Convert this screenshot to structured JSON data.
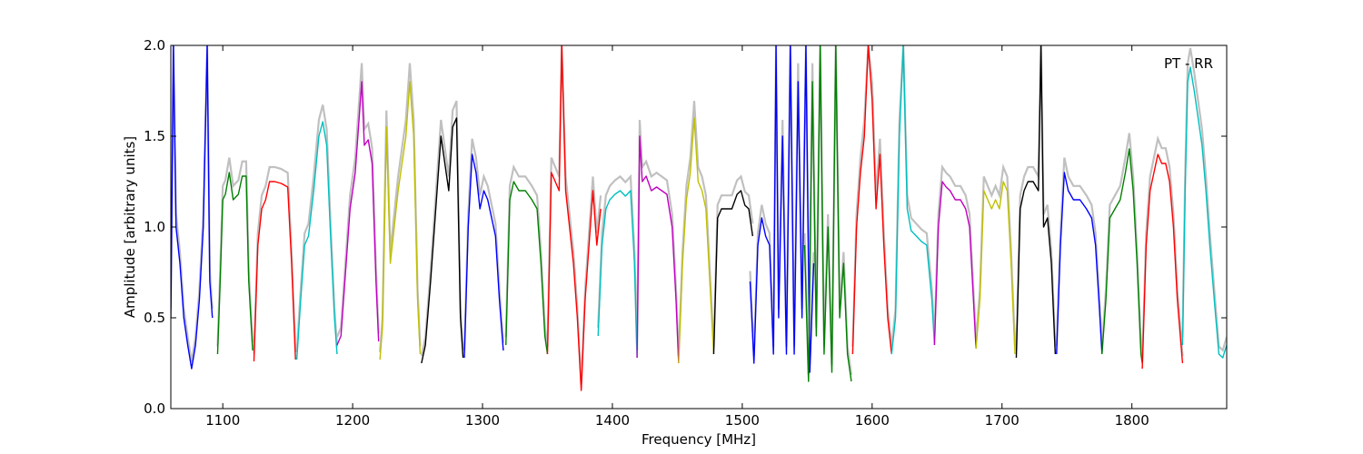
{
  "chart_data": {
    "type": "line",
    "annotation": "PT - RR",
    "xlabel": "Frequency [MHz]",
    "ylabel": "Amplitude [arbitrary units]",
    "xlim": [
      1060,
      1873
    ],
    "ylim": [
      0.0,
      2.0
    ],
    "xticks": [
      1100,
      1200,
      1300,
      1400,
      1500,
      1600,
      1700,
      1800
    ],
    "yticks": [
      0.0,
      0.5,
      1.0,
      1.5,
      2.0
    ],
    "xtick_labels": [
      "1100",
      "1200",
      "1300",
      "1400",
      "1500",
      "1600",
      "1700",
      "1800"
    ],
    "ytick_labels": [
      "0.0",
      "0.5",
      "1.0",
      "1.5",
      "2.0"
    ],
    "grid": false,
    "background_color": "#c0c0c0",
    "subband_colors": [
      "#0000ff",
      "#008000",
      "#ff0000",
      "#00bfbf",
      "#bf00bf",
      "#bfbf00",
      "#000000"
    ],
    "series": [
      {
        "color": "#0000ff",
        "x": [
          1060,
          1062,
          1064,
          1067,
          1070,
          1073,
          1076,
          1079,
          1082,
          1085,
          1088,
          1090,
          1092
        ],
        "y": [
          0.5,
          2.0,
          1.0,
          0.8,
          0.5,
          0.35,
          0.22,
          0.35,
          0.6,
          1.0,
          2.0,
          0.7,
          0.5
        ]
      },
      {
        "color": "#008000",
        "x": [
          1096,
          1098,
          1100,
          1102,
          1105,
          1108,
          1112,
          1115,
          1118,
          1120,
          1123
        ],
        "y": [
          0.3,
          0.7,
          1.15,
          1.18,
          1.3,
          1.15,
          1.18,
          1.28,
          1.28,
          0.7,
          0.32
        ]
      },
      {
        "color": "#ff0000",
        "x": [
          1124,
          1127,
          1130,
          1133,
          1136,
          1140,
          1145,
          1150,
          1153,
          1156
        ],
        "y": [
          0.26,
          0.9,
          1.1,
          1.15,
          1.25,
          1.25,
          1.24,
          1.22,
          0.8,
          0.27
        ]
      },
      {
        "color": "#00bfbf",
        "x": [
          1157,
          1160,
          1163,
          1166,
          1170,
          1174,
          1177,
          1180,
          1183,
          1186,
          1188
        ],
        "y": [
          0.27,
          0.6,
          0.9,
          0.95,
          1.2,
          1.5,
          1.58,
          1.45,
          0.95,
          0.5,
          0.3
        ]
      },
      {
        "color": "#bf00bf",
        "x": [
          1188,
          1191,
          1194,
          1198,
          1202,
          1205,
          1207,
          1209,
          1212,
          1215,
          1218,
          1220
        ],
        "y": [
          0.35,
          0.4,
          0.7,
          1.1,
          1.3,
          1.6,
          1.8,
          1.45,
          1.48,
          1.35,
          0.7,
          0.37
        ]
      },
      {
        "color": "#bfbf00",
        "x": [
          1221,
          1223,
          1226,
          1229,
          1232,
          1235,
          1238,
          1241,
          1244,
          1247,
          1250,
          1252
        ],
        "y": [
          0.27,
          0.45,
          1.55,
          0.8,
          1.0,
          1.2,
          1.35,
          1.5,
          1.8,
          1.5,
          0.6,
          0.3
        ]
      },
      {
        "color": "#000000",
        "x": [
          1253,
          1256,
          1260,
          1264,
          1268,
          1271,
          1274,
          1277,
          1280,
          1283,
          1285
        ],
        "y": [
          0.25,
          0.35,
          0.7,
          1.1,
          1.5,
          1.35,
          1.2,
          1.55,
          1.6,
          0.5,
          0.28
        ]
      },
      {
        "color": "#0000ff",
        "x": [
          1286,
          1289,
          1292,
          1295,
          1298,
          1301,
          1304,
          1307,
          1310,
          1313,
          1316
        ],
        "y": [
          0.28,
          1.0,
          1.4,
          1.3,
          1.1,
          1.2,
          1.15,
          1.05,
          0.95,
          0.6,
          0.32
        ]
      },
      {
        "color": "#008000",
        "x": [
          1318,
          1321,
          1324,
          1328,
          1333,
          1338,
          1342,
          1345,
          1348,
          1350
        ],
        "y": [
          0.35,
          1.15,
          1.25,
          1.2,
          1.2,
          1.15,
          1.1,
          0.8,
          0.4,
          0.3
        ]
      },
      {
        "color": "#ff0000",
        "x": [
          1350,
          1353,
          1356,
          1359,
          1361,
          1364,
          1367,
          1370,
          1373,
          1376,
          1379,
          1382,
          1385,
          1388,
          1391
        ],
        "y": [
          0.3,
          1.3,
          1.25,
          1.2,
          2.0,
          1.2,
          1.0,
          0.8,
          0.5,
          0.1,
          0.6,
          0.9,
          1.2,
          0.9,
          1.1
        ]
      },
      {
        "color": "#00bfbf",
        "x": [
          1389,
          1392,
          1395,
          1398,
          1402,
          1406,
          1410,
          1414,
          1417,
          1419
        ],
        "y": [
          0.4,
          0.9,
          1.1,
          1.15,
          1.18,
          1.2,
          1.17,
          1.2,
          0.8,
          0.28
        ]
      },
      {
        "color": "#bf00bf",
        "x": [
          1419,
          1421,
          1423,
          1426,
          1430,
          1434,
          1438,
          1442,
          1446,
          1449,
          1451
        ],
        "y": [
          0.28,
          1.5,
          1.25,
          1.28,
          1.2,
          1.22,
          1.2,
          1.18,
          1.0,
          0.6,
          0.25
        ]
      },
      {
        "color": "#bfbf00",
        "x": [
          1451,
          1454,
          1457,
          1460,
          1463,
          1466,
          1469,
          1472,
          1475,
          1478
        ],
        "y": [
          0.25,
          0.8,
          1.15,
          1.3,
          1.6,
          1.25,
          1.2,
          1.1,
          0.7,
          0.3
        ]
      },
      {
        "color": "#000000",
        "x": [
          1478,
          1481,
          1484,
          1488,
          1492,
          1496,
          1499,
          1502,
          1505,
          1508
        ],
        "y": [
          0.3,
          1.05,
          1.1,
          1.1,
          1.1,
          1.18,
          1.2,
          1.12,
          1.1,
          0.95
        ]
      },
      {
        "color": "#0000ff",
        "x": [
          1506,
          1509,
          1512,
          1515,
          1518,
          1521,
          1524,
          1526,
          1528,
          1531,
          1534,
          1537,
          1540,
          1543,
          1546,
          1549,
          1552,
          1555
        ],
        "y": [
          0.7,
          0.25,
          0.9,
          1.05,
          0.95,
          0.9,
          0.3,
          2.0,
          0.5,
          1.5,
          0.3,
          2.0,
          0.3,
          1.8,
          0.5,
          2.0,
          0.2,
          0.8
        ]
      },
      {
        "color": "#008000",
        "x": [
          1548,
          1551,
          1554,
          1557,
          1560,
          1563,
          1566,
          1569,
          1572,
          1575,
          1578,
          1581,
          1584
        ],
        "y": [
          0.9,
          0.15,
          1.8,
          0.4,
          2.0,
          0.3,
          1.0,
          0.2,
          2.0,
          0.5,
          0.8,
          0.3,
          0.15
        ]
      },
      {
        "color": "#ff0000",
        "x": [
          1585,
          1588,
          1591,
          1594,
          1597,
          1600,
          1603,
          1606,
          1609,
          1612,
          1615
        ],
        "y": [
          0.3,
          1.0,
          1.3,
          1.5,
          2.0,
          1.7,
          1.1,
          1.4,
          0.9,
          0.5,
          0.3
        ]
      },
      {
        "color": "#00bfbf",
        "x": [
          1615,
          1618,
          1621,
          1624,
          1627,
          1630,
          1634,
          1638,
          1642,
          1646,
          1648
        ],
        "y": [
          0.3,
          0.5,
          1.5,
          2.0,
          1.1,
          0.98,
          0.95,
          0.92,
          0.9,
          0.6,
          0.35
        ]
      },
      {
        "color": "#bf00bf",
        "x": [
          1648,
          1651,
          1654,
          1657,
          1660,
          1664,
          1668,
          1672,
          1675,
          1678,
          1680
        ],
        "y": [
          0.35,
          1.0,
          1.25,
          1.22,
          1.2,
          1.15,
          1.15,
          1.1,
          1.0,
          0.6,
          0.33
        ]
      },
      {
        "color": "#bfbf00",
        "x": [
          1680,
          1683,
          1686,
          1689,
          1692,
          1695,
          1698,
          1701,
          1704,
          1707,
          1710
        ],
        "y": [
          0.33,
          0.6,
          1.2,
          1.15,
          1.1,
          1.15,
          1.1,
          1.25,
          1.2,
          0.8,
          0.3
        ]
      },
      {
        "color": "#000000",
        "x": [
          1711,
          1714,
          1717,
          1720,
          1724,
          1728,
          1730,
          1732,
          1735,
          1738,
          1741
        ],
        "y": [
          0.28,
          1.1,
          1.2,
          1.25,
          1.25,
          1.2,
          2.0,
          1.0,
          1.05,
          0.8,
          0.3
        ]
      },
      {
        "color": "#0000ff",
        "x": [
          1742,
          1745,
          1748,
          1751,
          1755,
          1760,
          1765,
          1769,
          1772,
          1775,
          1777
        ],
        "y": [
          0.3,
          0.9,
          1.3,
          1.2,
          1.15,
          1.15,
          1.1,
          1.05,
          0.9,
          0.55,
          0.3
        ]
      },
      {
        "color": "#008000",
        "x": [
          1777,
          1780,
          1783,
          1787,
          1791,
          1795,
          1798,
          1801,
          1804,
          1807,
          1808
        ],
        "y": [
          0.3,
          0.6,
          1.05,
          1.1,
          1.15,
          1.3,
          1.43,
          1.2,
          0.8,
          0.3,
          0.25
        ]
      },
      {
        "color": "#ff0000",
        "x": [
          1808,
          1811,
          1814,
          1817,
          1820,
          1823,
          1826,
          1829,
          1832,
          1835,
          1839
        ],
        "y": [
          0.22,
          0.9,
          1.2,
          1.3,
          1.4,
          1.35,
          1.35,
          1.25,
          1.0,
          0.6,
          0.25
        ]
      },
      {
        "color": "#00bfbf",
        "x": [
          1839,
          1841,
          1843,
          1845,
          1848,
          1851,
          1854,
          1857,
          1860,
          1864,
          1867,
          1870,
          1873
        ],
        "y": [
          0.35,
          1.2,
          1.8,
          1.88,
          1.75,
          1.6,
          1.45,
          1.2,
          0.9,
          0.55,
          0.3,
          0.28,
          0.35
        ]
      }
    ]
  }
}
